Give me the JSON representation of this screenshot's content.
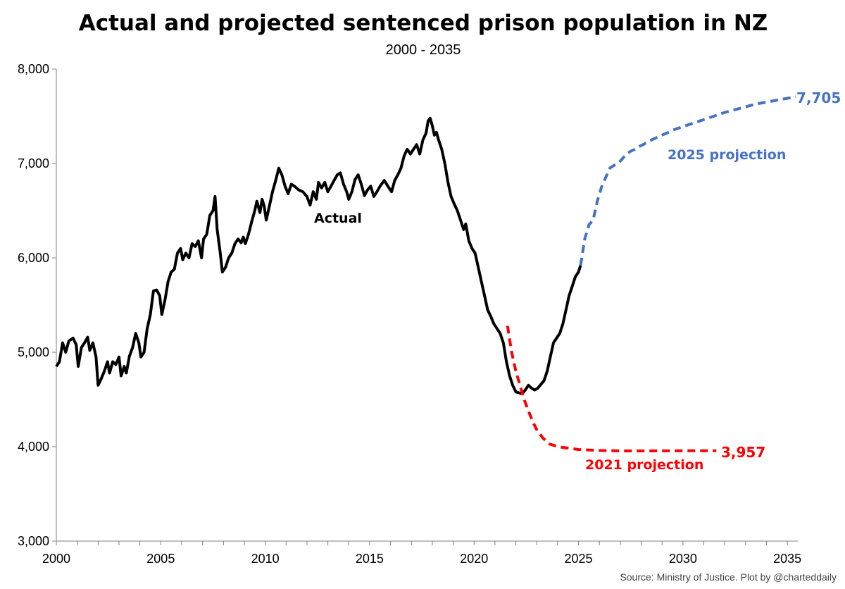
{
  "chart_data": {
    "type": "line",
    "title": "Actual and projected sentenced prison population in NZ",
    "subtitle": "2000 - 2035",
    "source": "Source: Ministry of Justice.  Plot by @charteddaily",
    "xlim": [
      2000,
      2035.5
    ],
    "ylim": [
      3000,
      8000
    ],
    "x_ticks": [
      "2000",
      "2005",
      "2010",
      "2015",
      "2020",
      "2025",
      "2030",
      "2035"
    ],
    "y_ticks": [
      "3,000",
      "4,000",
      "5,000",
      "6,000",
      "7,000",
      "8,000"
    ],
    "grid": false,
    "legend": "none",
    "series": [
      {
        "name": "Actual",
        "color": "#000000",
        "style": "solid",
        "points": [
          [
            2000.0,
            4850
          ],
          [
            2000.15,
            4900
          ],
          [
            2000.3,
            5100
          ],
          [
            2000.45,
            5000
          ],
          [
            2000.6,
            5120
          ],
          [
            2000.8,
            5150
          ],
          [
            2000.95,
            5080
          ],
          [
            2001.05,
            4850
          ],
          [
            2001.2,
            5050
          ],
          [
            2001.35,
            5100
          ],
          [
            2001.5,
            5160
          ],
          [
            2001.6,
            5020
          ],
          [
            2001.75,
            5100
          ],
          [
            2001.9,
            4950
          ],
          [
            2002.0,
            4650
          ],
          [
            2002.15,
            4720
          ],
          [
            2002.3,
            4800
          ],
          [
            2002.45,
            4900
          ],
          [
            2002.55,
            4780
          ],
          [
            2002.7,
            4900
          ],
          [
            2002.85,
            4870
          ],
          [
            2003.0,
            4950
          ],
          [
            2003.1,
            4750
          ],
          [
            2003.25,
            4850
          ],
          [
            2003.35,
            4780
          ],
          [
            2003.5,
            4960
          ],
          [
            2003.65,
            5050
          ],
          [
            2003.8,
            5200
          ],
          [
            2003.95,
            5100
          ],
          [
            2004.05,
            4950
          ],
          [
            2004.2,
            5000
          ],
          [
            2004.35,
            5250
          ],
          [
            2004.5,
            5400
          ],
          [
            2004.65,
            5650
          ],
          [
            2004.8,
            5660
          ],
          [
            2004.95,
            5600
          ],
          [
            2005.05,
            5400
          ],
          [
            2005.2,
            5550
          ],
          [
            2005.35,
            5750
          ],
          [
            2005.5,
            5850
          ],
          [
            2005.65,
            5880
          ],
          [
            2005.8,
            6050
          ],
          [
            2005.95,
            6100
          ],
          [
            2006.05,
            5980
          ],
          [
            2006.2,
            6050
          ],
          [
            2006.35,
            6000
          ],
          [
            2006.5,
            6150
          ],
          [
            2006.65,
            6120
          ],
          [
            2006.8,
            6180
          ],
          [
            2006.95,
            6000
          ],
          [
            2007.05,
            6200
          ],
          [
            2007.2,
            6250
          ],
          [
            2007.35,
            6450
          ],
          [
            2007.5,
            6500
          ],
          [
            2007.6,
            6650
          ],
          [
            2007.7,
            6300
          ],
          [
            2007.85,
            6050
          ],
          [
            2007.95,
            5850
          ],
          [
            2008.1,
            5900
          ],
          [
            2008.25,
            6000
          ],
          [
            2008.4,
            6050
          ],
          [
            2008.55,
            6150
          ],
          [
            2008.7,
            6200
          ],
          [
            2008.85,
            6160
          ],
          [
            2008.95,
            6220
          ],
          [
            2009.05,
            6150
          ],
          [
            2009.2,
            6250
          ],
          [
            2009.35,
            6380
          ],
          [
            2009.5,
            6500
          ],
          [
            2009.6,
            6600
          ],
          [
            2009.75,
            6480
          ],
          [
            2009.85,
            6620
          ],
          [
            2009.95,
            6550
          ],
          [
            2010.05,
            6400
          ],
          [
            2010.2,
            6550
          ],
          [
            2010.35,
            6700
          ],
          [
            2010.5,
            6820
          ],
          [
            2010.65,
            6950
          ],
          [
            2010.8,
            6880
          ],
          [
            2010.95,
            6760
          ],
          [
            2011.1,
            6680
          ],
          [
            2011.25,
            6780
          ],
          [
            2011.4,
            6760
          ],
          [
            2011.6,
            6720
          ],
          [
            2011.8,
            6700
          ],
          [
            2012.0,
            6650
          ],
          [
            2012.15,
            6560
          ],
          [
            2012.3,
            6700
          ],
          [
            2012.45,
            6620
          ],
          [
            2012.55,
            6800
          ],
          [
            2012.7,
            6740
          ],
          [
            2012.85,
            6800
          ],
          [
            2013.0,
            6700
          ],
          [
            2013.15,
            6760
          ],
          [
            2013.3,
            6820
          ],
          [
            2013.45,
            6880
          ],
          [
            2013.6,
            6900
          ],
          [
            2013.75,
            6780
          ],
          [
            2013.9,
            6700
          ],
          [
            2014.0,
            6620
          ],
          [
            2014.15,
            6700
          ],
          [
            2014.3,
            6830
          ],
          [
            2014.45,
            6880
          ],
          [
            2014.6,
            6780
          ],
          [
            2014.75,
            6660
          ],
          [
            2014.9,
            6720
          ],
          [
            2015.05,
            6760
          ],
          [
            2015.2,
            6650
          ],
          [
            2015.35,
            6700
          ],
          [
            2015.5,
            6760
          ],
          [
            2015.7,
            6820
          ],
          [
            2015.9,
            6750
          ],
          [
            2016.05,
            6700
          ],
          [
            2016.2,
            6820
          ],
          [
            2016.35,
            6880
          ],
          [
            2016.5,
            6950
          ],
          [
            2016.65,
            7080
          ],
          [
            2016.8,
            7150
          ],
          [
            2016.95,
            7100
          ],
          [
            2017.1,
            7150
          ],
          [
            2017.25,
            7200
          ],
          [
            2017.4,
            7100
          ],
          [
            2017.55,
            7250
          ],
          [
            2017.7,
            7320
          ],
          [
            2017.8,
            7450
          ],
          [
            2017.9,
            7480
          ],
          [
            2018.0,
            7400
          ],
          [
            2018.1,
            7300
          ],
          [
            2018.2,
            7330
          ],
          [
            2018.3,
            7250
          ],
          [
            2018.45,
            7150
          ],
          [
            2018.6,
            7000
          ],
          [
            2018.75,
            6800
          ],
          [
            2018.9,
            6650
          ],
          [
            2019.05,
            6570
          ],
          [
            2019.2,
            6500
          ],
          [
            2019.35,
            6400
          ],
          [
            2019.5,
            6300
          ],
          [
            2019.6,
            6360
          ],
          [
            2019.75,
            6180
          ],
          [
            2019.9,
            6100
          ],
          [
            2020.05,
            6050
          ],
          [
            2020.2,
            5900
          ],
          [
            2020.35,
            5750
          ],
          [
            2020.5,
            5600
          ],
          [
            2020.65,
            5450
          ],
          [
            2020.8,
            5380
          ],
          [
            2020.95,
            5300
          ],
          [
            2021.1,
            5250
          ],
          [
            2021.25,
            5200
          ],
          [
            2021.4,
            5100
          ],
          [
            2021.55,
            4900
          ],
          [
            2021.7,
            4750
          ],
          [
            2021.85,
            4650
          ],
          [
            2022.0,
            4580
          ],
          [
            2022.15,
            4570
          ],
          [
            2022.3,
            4560
          ],
          [
            2022.45,
            4600
          ],
          [
            2022.6,
            4650
          ],
          [
            2022.75,
            4620
          ],
          [
            2022.9,
            4600
          ],
          [
            2023.05,
            4620
          ],
          [
            2023.2,
            4660
          ],
          [
            2023.35,
            4700
          ],
          [
            2023.5,
            4800
          ],
          [
            2023.65,
            4950
          ],
          [
            2023.8,
            5100
          ],
          [
            2023.95,
            5150
          ],
          [
            2024.1,
            5200
          ],
          [
            2024.25,
            5300
          ],
          [
            2024.4,
            5450
          ],
          [
            2024.55,
            5600
          ],
          [
            2024.7,
            5700
          ],
          [
            2024.85,
            5800
          ],
          [
            2025.0,
            5850
          ],
          [
            2025.1,
            5920
          ]
        ]
      },
      {
        "name": "2021 projection",
        "color": "#ff0000",
        "style": "dashed",
        "points": [
          [
            2021.6,
            5280
          ],
          [
            2021.8,
            5000
          ],
          [
            2022.0,
            4800
          ],
          [
            2022.2,
            4650
          ],
          [
            2022.4,
            4500
          ],
          [
            2022.6,
            4380
          ],
          [
            2022.8,
            4270
          ],
          [
            2023.0,
            4180
          ],
          [
            2023.3,
            4090
          ],
          [
            2023.6,
            4030
          ],
          [
            2024.0,
            4000
          ],
          [
            2024.5,
            3985
          ],
          [
            2025.0,
            3970
          ],
          [
            2025.5,
            3965
          ],
          [
            2026.0,
            3960
          ],
          [
            2026.5,
            3958
          ],
          [
            2027.0,
            3955
          ],
          [
            2028.0,
            3955
          ],
          [
            2029.0,
            3956
          ],
          [
            2030.0,
            3957
          ],
          [
            2031.0,
            3957
          ],
          [
            2031.6,
            3957
          ]
        ]
      },
      {
        "name": "2025 projection",
        "color": "#4472c4",
        "style": "dashed",
        "points": [
          [
            2025.1,
            5920
          ],
          [
            2025.3,
            6200
          ],
          [
            2025.5,
            6350
          ],
          [
            2025.7,
            6400
          ],
          [
            2025.9,
            6600
          ],
          [
            2026.1,
            6750
          ],
          [
            2026.3,
            6850
          ],
          [
            2026.5,
            6950
          ],
          [
            2026.7,
            6980
          ],
          [
            2026.9,
            7000
          ],
          [
            2027.1,
            7050
          ],
          [
            2027.3,
            7100
          ],
          [
            2027.5,
            7130
          ],
          [
            2027.7,
            7150
          ],
          [
            2027.9,
            7180
          ],
          [
            2028.1,
            7200
          ],
          [
            2028.3,
            7230
          ],
          [
            2028.5,
            7250
          ],
          [
            2028.7,
            7270
          ],
          [
            2029.0,
            7300
          ],
          [
            2029.3,
            7330
          ],
          [
            2029.6,
            7360
          ],
          [
            2030.0,
            7390
          ],
          [
            2030.4,
            7420
          ],
          [
            2030.8,
            7450
          ],
          [
            2031.2,
            7480
          ],
          [
            2031.6,
            7510
          ],
          [
            2032.0,
            7540
          ],
          [
            2032.5,
            7570
          ],
          [
            2033.0,
            7600
          ],
          [
            2033.5,
            7630
          ],
          [
            2034.0,
            7650
          ],
          [
            2034.5,
            7670
          ],
          [
            2035.0,
            7690
          ],
          [
            2035.4,
            7705
          ]
        ]
      }
    ],
    "annotations": [
      {
        "text": "Actual",
        "color": "#000000"
      },
      {
        "text": "2021 projection",
        "color": "#ff0000"
      },
      {
        "text": "3,957",
        "color": "#ff0000"
      },
      {
        "text": "2025 projection",
        "color": "#4472c4"
      },
      {
        "text": "7,705",
        "color": "#4472c4"
      }
    ]
  }
}
